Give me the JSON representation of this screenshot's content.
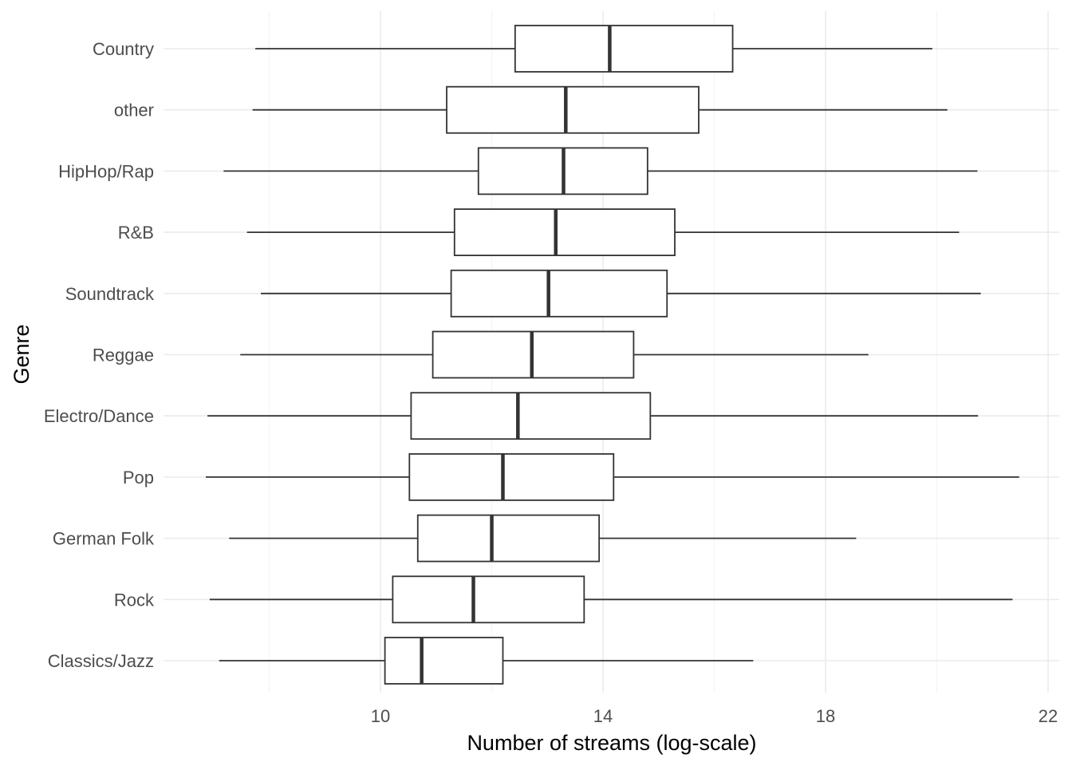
{
  "chart_data": {
    "type": "boxplot",
    "orientation": "horizontal",
    "xlabel": "Number of streams (log-scale)",
    "ylabel": "Genre",
    "xticks": [
      10,
      14,
      18,
      22
    ],
    "xlim": [
      6.1,
      22.2
    ],
    "grid": true,
    "categories": [
      "Country",
      "other",
      "HipHop/Rap",
      "R&B",
      "Soundtrack",
      "Reggae",
      "Electro/Dance",
      "Pop",
      "German Folk",
      "Rock",
      "Classics/Jazz"
    ],
    "boxes": [
      {
        "genre": "Country",
        "whisker_low": 7.75,
        "q1": 12.42,
        "median": 14.12,
        "q3": 16.33,
        "whisker_high": 19.92
      },
      {
        "genre": "other",
        "whisker_low": 7.7,
        "q1": 11.19,
        "median": 13.33,
        "q3": 15.72,
        "whisker_high": 20.19
      },
      {
        "genre": "HipHop/Rap",
        "whisker_low": 7.18,
        "q1": 11.76,
        "median": 13.29,
        "q3": 14.8,
        "whisker_high": 20.73
      },
      {
        "genre": "R&B",
        "whisker_low": 7.6,
        "q1": 11.33,
        "median": 13.15,
        "q3": 15.29,
        "whisker_high": 20.4
      },
      {
        "genre": "Soundtrack",
        "whisker_low": 7.85,
        "q1": 11.27,
        "median": 13.02,
        "q3": 15.15,
        "whisker_high": 20.79
      },
      {
        "genre": "Reggae",
        "whisker_low": 7.48,
        "q1": 10.94,
        "median": 12.72,
        "q3": 14.55,
        "whisker_high": 18.77
      },
      {
        "genre": "Electro/Dance",
        "whisker_low": 6.89,
        "q1": 10.55,
        "median": 12.47,
        "q3": 14.85,
        "whisker_high": 20.74
      },
      {
        "genre": "Pop",
        "whisker_low": 6.86,
        "q1": 10.52,
        "median": 12.2,
        "q3": 14.19,
        "whisker_high": 21.48
      },
      {
        "genre": "German Folk",
        "whisker_low": 7.28,
        "q1": 10.67,
        "median": 12.0,
        "q3": 13.93,
        "whisker_high": 18.55
      },
      {
        "genre": "Rock",
        "whisker_low": 6.93,
        "q1": 10.22,
        "median": 11.67,
        "q3": 13.66,
        "whisker_high": 21.36
      },
      {
        "genre": "Classics/Jazz",
        "whisker_low": 7.1,
        "q1": 10.08,
        "median": 10.74,
        "q3": 12.2,
        "whisker_high": 16.7
      }
    ]
  }
}
